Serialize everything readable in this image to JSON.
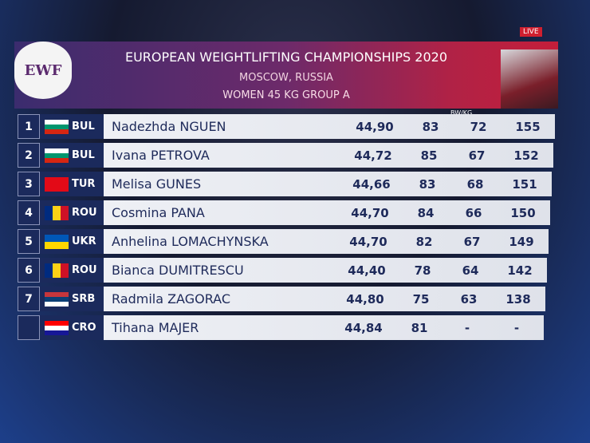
{
  "live": "LIVE",
  "header": {
    "logo": "EWF",
    "title": "EUROPEAN WEIGHTLIFTING CHAMPIONSHIPS 2020",
    "location": "MOSCOW, RUSSIA",
    "group": "WOMEN 45 KG GROUP A"
  },
  "table": {
    "column_label": "BW/KG",
    "rows": [
      {
        "rank": "1",
        "country": "BUL",
        "flag": {
          "dir": "h",
          "colors": [
            "#ffffff",
            "#00966e",
            "#d62612"
          ]
        },
        "name": "Nadezhda NGUEN",
        "bw": "44,90",
        "snatch": "83",
        "clean_jerk": "72",
        "total": "155"
      },
      {
        "rank": "2",
        "country": "BUL",
        "flag": {
          "dir": "h",
          "colors": [
            "#ffffff",
            "#00966e",
            "#d62612"
          ]
        },
        "name": "Ivana PETROVA",
        "bw": "44,72",
        "snatch": "85",
        "clean_jerk": "67",
        "total": "152"
      },
      {
        "rank": "3",
        "country": "TUR",
        "flag": {
          "dir": "h",
          "colors": [
            "#e30a17"
          ]
        },
        "name": "Melisa GUNES",
        "bw": "44,66",
        "snatch": "83",
        "clean_jerk": "68",
        "total": "151"
      },
      {
        "rank": "4",
        "country": "ROU",
        "flag": {
          "dir": "v",
          "colors": [
            "#002b7f",
            "#fcd116",
            "#ce1126"
          ]
        },
        "name": "Cosmina PANA",
        "bw": "44,70",
        "snatch": "84",
        "clean_jerk": "66",
        "total": "150"
      },
      {
        "rank": "5",
        "country": "UKR",
        "flag": {
          "dir": "h",
          "colors": [
            "#0057b7",
            "#ffd700"
          ]
        },
        "name": "Anhelina LOMACHYNSKA",
        "bw": "44,70",
        "snatch": "82",
        "clean_jerk": "67",
        "total": "149"
      },
      {
        "rank": "6",
        "country": "ROU",
        "flag": {
          "dir": "v",
          "colors": [
            "#002b7f",
            "#fcd116",
            "#ce1126"
          ]
        },
        "name": "Bianca DUMITRESCU",
        "bw": "44,40",
        "snatch": "78",
        "clean_jerk": "64",
        "total": "142"
      },
      {
        "rank": "7",
        "country": "SRB",
        "flag": {
          "dir": "h",
          "colors": [
            "#c6363c",
            "#0c4076",
            "#ffffff"
          ]
        },
        "name": "Radmila ZAGORAC",
        "bw": "44,80",
        "snatch": "75",
        "clean_jerk": "63",
        "total": "138"
      },
      {
        "rank": null,
        "country": "CRO",
        "flag": {
          "dir": "h",
          "colors": [
            "#ff0000",
            "#ffffff",
            "#171796"
          ]
        },
        "name": "Tihana MAJER",
        "bw": "44,84",
        "snatch": "81",
        "clean_jerk": "-",
        "total": "-"
      }
    ]
  }
}
